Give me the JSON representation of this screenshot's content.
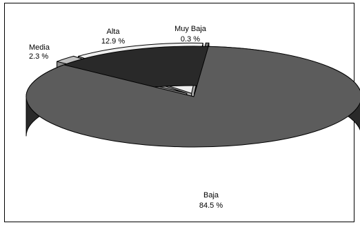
{
  "chart_data": {
    "type": "pie",
    "title": "",
    "three_d": true,
    "legend": "none",
    "slices": [
      {
        "name": "Baja",
        "value": 84.5,
        "label_name": "Baja",
        "label_value": "84.5 %",
        "color": "#5c5c5c"
      },
      {
        "name": "Media",
        "value": 2.3,
        "label_name": "Media",
        "label_value": "2.3 %",
        "color": "#c0c0c0"
      },
      {
        "name": "Alta",
        "value": 12.9,
        "label_name": "Alta",
        "label_value": "12.9 %",
        "color": "#eeeeee"
      },
      {
        "name": "Muy Baja",
        "value": 0.3,
        "label_name": "Muy Baja",
        "label_value": "0.3 %",
        "color": "#808080"
      }
    ]
  }
}
